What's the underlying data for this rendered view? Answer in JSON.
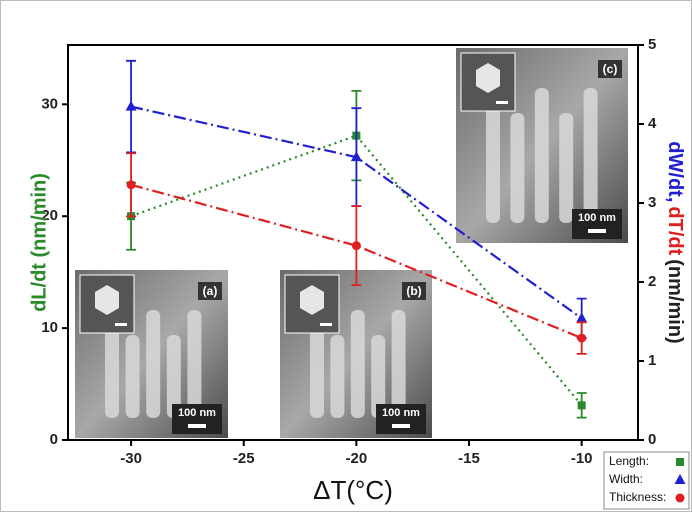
{
  "chart_data": {
    "type": "line",
    "xlabel": "ΔT(°C)",
    "ylabel": "dL/dt (nm/min)",
    "ylabel_color": "#2a8a2a",
    "y2label_parts": [
      {
        "text": "dW/dt,",
        "color": "#2020d0"
      },
      {
        "text": "dT/dt",
        "color": "#e02020"
      },
      {
        "text": "(nm/min)",
        "color": "#222222"
      }
    ],
    "x": [
      -30,
      -20,
      -10
    ],
    "xlim": [
      -32.8,
      -7.5
    ],
    "xticks": [
      -30,
      -25,
      -20,
      -15,
      -10
    ],
    "ylim": [
      0,
      35.3
    ],
    "yticks": [
      0,
      10,
      20,
      30
    ],
    "y2lim": [
      0,
      5
    ],
    "y2ticks": [
      0,
      1,
      2,
      3,
      4,
      5
    ],
    "legend": "lower right",
    "series": [
      {
        "name": "Length:",
        "color": "#2a8a2a",
        "marker": "square",
        "dash": "2,4",
        "values": [
          20.0,
          27.2,
          3.1
        ],
        "errors": [
          3.0,
          4.0,
          1.1
        ]
      },
      {
        "name": "Width:",
        "color": "#2020d0",
        "marker": "triangle",
        "dash": "12,4,2,4",
        "axis": "y2",
        "values": [
          4.22,
          3.58,
          1.54
        ],
        "errors": [
          0.58,
          0.62,
          0.25
        ]
      },
      {
        "name": "Thickness:",
        "color": "#e02020",
        "marker": "circle",
        "dash": "12,4,2,4",
        "axis": "y2",
        "values": [
          3.23,
          2.46,
          1.29
        ],
        "errors": [
          0.4,
          0.5,
          0.2
        ]
      }
    ],
    "insets": [
      {
        "label": "(a)",
        "scale": "100 nm"
      },
      {
        "label": "(b)",
        "scale": "100 nm"
      },
      {
        "label": "(c)",
        "scale": "100 nm"
      }
    ]
  }
}
